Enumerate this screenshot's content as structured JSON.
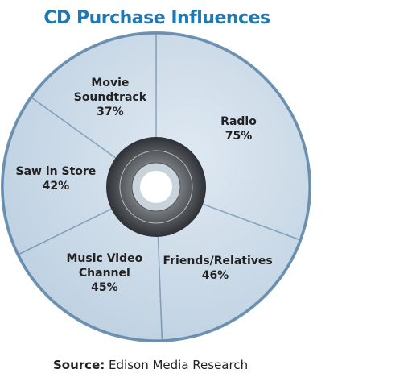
{
  "chart_data": {
    "type": "pie",
    "title": "CD Purchase Influences",
    "categories": [
      "Radio",
      "Friends/Relatives",
      "Music Video Channel",
      "Saw in Store",
      "Movie Soundtrack"
    ],
    "values": [
      75,
      46,
      45,
      42,
      37
    ],
    "value_labels": [
      "75%",
      "46%",
      "45%",
      "42%",
      "37%"
    ],
    "color": "#cddcea",
    "source_label": "Source:",
    "source": "Edison Media Research"
  }
}
